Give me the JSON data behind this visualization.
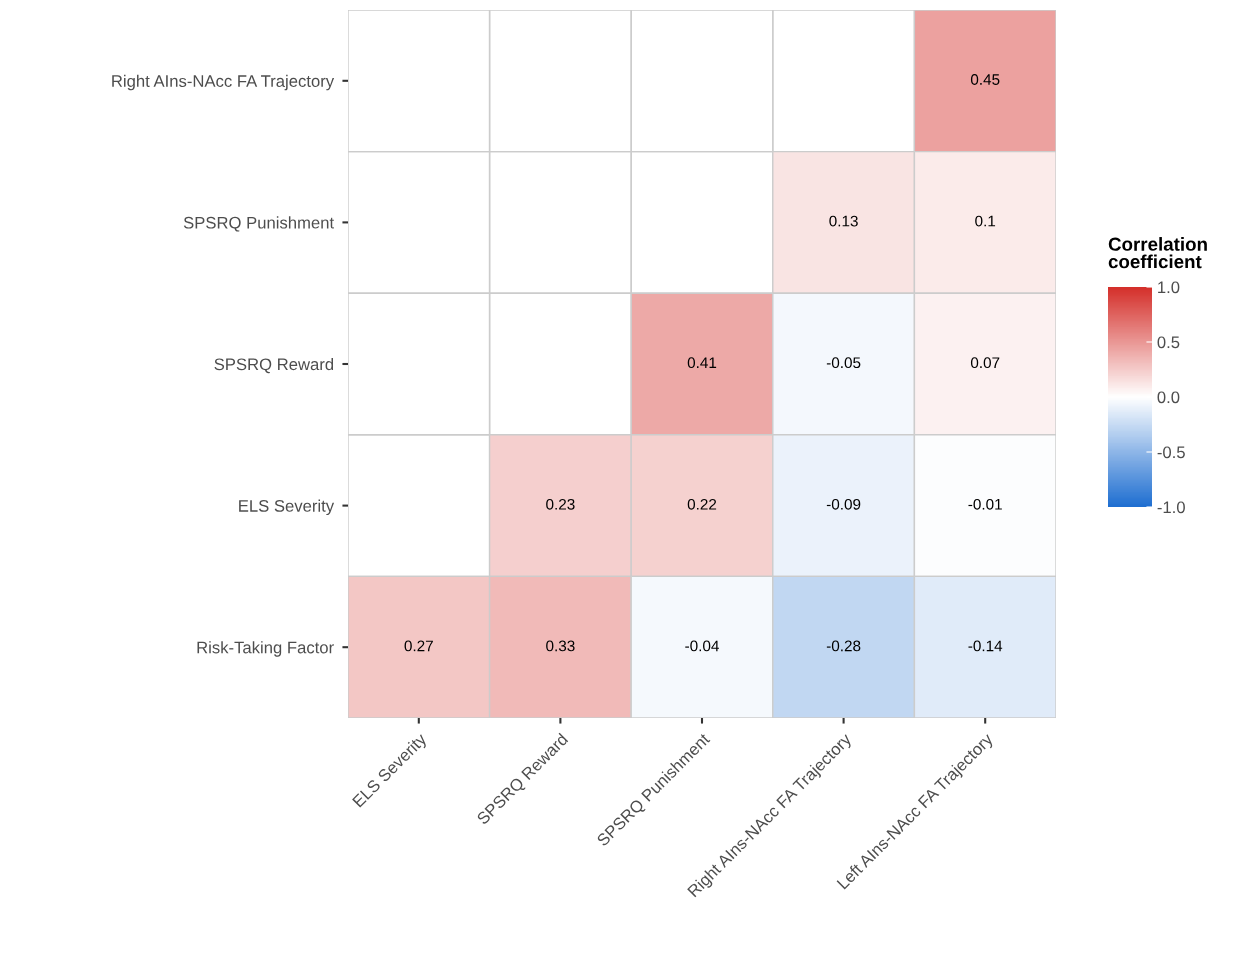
{
  "chart_data": {
    "type": "heatmap",
    "categories": [
      "ELS Severity",
      "SPSRQ Reward",
      "SPSRQ Punishment",
      "Right AIns-NAcc FA Trajectory",
      "Left AIns-NAcc FA Trajectory"
    ],
    "y_categories": [
      "Right AIns-NAcc FA Trajectory",
      "SPSRQ Punishment",
      "SPSRQ Reward",
      "ELS Severity",
      "Risk-Taking Factor"
    ],
    "cells": [
      [
        null,
        null,
        null,
        null,
        0.45
      ],
      [
        null,
        null,
        null,
        0.13,
        0.1
      ],
      [
        null,
        null,
        0.41,
        -0.05,
        0.07
      ],
      [
        null,
        0.23,
        0.22,
        -0.09,
        -0.01
      ],
      [
        0.27,
        0.33,
        -0.04,
        -0.28,
        -0.14
      ]
    ],
    "data_labels": true,
    "clabel": "Correlation coefficient",
    "clim": [
      -1,
      1
    ],
    "cticks": [
      {
        "value": -1,
        "label": "-1.0"
      },
      {
        "value": -0.5,
        "label": "-0.5"
      },
      {
        "value": 0,
        "label": "0.0"
      },
      {
        "value": 0.5,
        "label": "0.5"
      },
      {
        "value": 1,
        "label": "1.0"
      }
    ]
  }
}
